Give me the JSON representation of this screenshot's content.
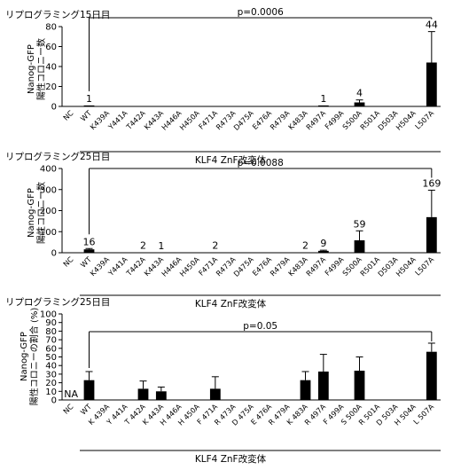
{
  "chart_data": [
    {
      "type": "bar",
      "panel_title": "リプログラミング15日目",
      "ylabel": "Nanog-GFP\n陽性コロニー数",
      "xlabel": "KLF4 ZnF改変体",
      "categories": [
        "NC",
        "WT",
        "K439A",
        "Y441A",
        "T442A",
        "K443A",
        "H446A",
        "H450A",
        "F471A",
        "R473A",
        "D475A",
        "E476A",
        "R479A",
        "K483A",
        "R497A",
        "F499A",
        "S500A",
        "R501A",
        "D503A",
        "H504A",
        "L507A"
      ],
      "values": [
        0,
        1,
        0,
        0,
        0,
        0,
        0,
        0,
        0,
        0,
        0,
        0,
        0,
        0,
        1,
        0,
        4,
        0,
        0,
        0,
        44
      ],
      "errors": [
        0,
        0,
        0,
        0,
        0,
        0,
        0,
        0,
        0,
        0,
        0,
        0,
        0,
        0,
        0,
        0,
        2.5,
        0,
        0,
        0,
        31
      ],
      "value_labels": [
        "",
        "1",
        "",
        "",
        "",
        "",
        "",
        "",
        "",
        "",
        "",
        "",
        "",
        "",
        "1",
        "",
        "4",
        "",
        "",
        "",
        "44"
      ],
      "ylim": [
        0,
        80
      ],
      "yticks": [
        0,
        20,
        40,
        60,
        80
      ],
      "significance": {
        "label": "p=0.0006",
        "from": "WT",
        "to": "L507A"
      }
    },
    {
      "type": "bar",
      "panel_title": "リプログラミング25日目",
      "ylabel": "Nanog-GFP\n陽性コロニー数",
      "xlabel": "KLF4 ZnF改変体",
      "categories": [
        "NC",
        "WT",
        "K439A",
        "Y441A",
        "T442A",
        "K443A",
        "H446A",
        "H450A",
        "F471A",
        "R473A",
        "D475A",
        "E476A",
        "R479A",
        "K483A",
        "R497A",
        "F499A",
        "S500A",
        "R501A",
        "D503A",
        "H504A",
        "L507A"
      ],
      "values": [
        0,
        16,
        0,
        0,
        2,
        1,
        0,
        0,
        2,
        0,
        0,
        0,
        0,
        2,
        9,
        0,
        59,
        0,
        0,
        0,
        169
      ],
      "errors": [
        0,
        4,
        0,
        0,
        0,
        0,
        0,
        0,
        0,
        0,
        0,
        0,
        0,
        0,
        3,
        0,
        45,
        0,
        0,
        0,
        128
      ],
      "value_labels": [
        "",
        "16",
        "",
        "",
        "2",
        "1",
        "",
        "",
        "2",
        "",
        "",
        "",
        "",
        "2",
        "9",
        "",
        "59",
        "",
        "",
        "",
        "169"
      ],
      "ylim": [
        0,
        400
      ],
      "yticks": [
        0,
        100,
        200,
        300,
        400
      ],
      "significance": {
        "label": "p=0.0088",
        "from": "WT",
        "to": "L507A"
      }
    },
    {
      "type": "bar",
      "panel_title": "リプログラミング25日目",
      "ylabel": "Nanog-GFP\n陽性コロニーの割合 (%)",
      "xlabel": "KLF4 ZnF改変体",
      "categories": [
        "NC",
        "WT",
        "K 439A",
        "Y 441A",
        "T 442A",
        "K 443A",
        "H 446A",
        "H 450A",
        "F 471A",
        "R 473A",
        "D 475A",
        "E 476A",
        "R 479A",
        "K 483A",
        "R 497A",
        "F 499A",
        "S 500A",
        "R 501A",
        "D 503A",
        "H 504A",
        "L 507A"
      ],
      "values": [
        0,
        23,
        0,
        0,
        13,
        10,
        0,
        0,
        13,
        0,
        0,
        0,
        0,
        23,
        33,
        0,
        34,
        0,
        0,
        0,
        56
      ],
      "errors": [
        0,
        10,
        0,
        0,
        9,
        5,
        0,
        0,
        14,
        0,
        0,
        0,
        0,
        10,
        20,
        0,
        16,
        0,
        0,
        0,
        10
      ],
      "value_labels": [
        "NA",
        "",
        "",
        "",
        "",
        "",
        "",
        "",
        "",
        "",
        "",
        "",
        "",
        "",
        "",
        "",
        "",
        "",
        "",
        "",
        ""
      ],
      "ylim": [
        0,
        100
      ],
      "yticks": [
        0,
        10,
        20,
        30,
        40,
        50,
        60,
        70,
        80,
        90,
        100
      ],
      "significance": {
        "label": "p=0.05",
        "from": "WT",
        "to": "L507A"
      }
    }
  ]
}
